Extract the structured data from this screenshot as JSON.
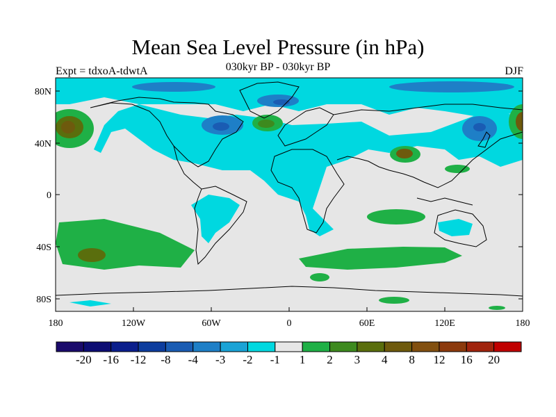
{
  "title": "Mean Sea Level Pressure (in hPa)",
  "subtitle": "030kyr BP - 030kyr BP",
  "left_label": "Expt = tdxoA-tdwtA",
  "right_label": "DJF",
  "lat_ticks": [
    "80N",
    "40N",
    "0",
    "40S",
    "80S"
  ],
  "lon_ticks": [
    "180",
    "120W",
    "60W",
    "0",
    "60E",
    "120E",
    "180"
  ],
  "colorbar": {
    "colors": [
      "#1a0a6b",
      "#0d0d73",
      "#0a1e8c",
      "#0d3d9e",
      "#1a5cb3",
      "#1e7fc7",
      "#1aa3d6",
      "#00d8e0",
      "#e6e6e6",
      "#1fb046",
      "#3d8a1e",
      "#5a6e0d",
      "#6e5a0d",
      "#825010",
      "#8c3a0d",
      "#a0240d",
      "#c00000"
    ],
    "labels": [
      "-20",
      "-16",
      "-12",
      "-8",
      "-4",
      "-3",
      "-2",
      "-1",
      "1",
      "2",
      "3",
      "4",
      "8",
      "12",
      "16",
      "20"
    ]
  }
}
